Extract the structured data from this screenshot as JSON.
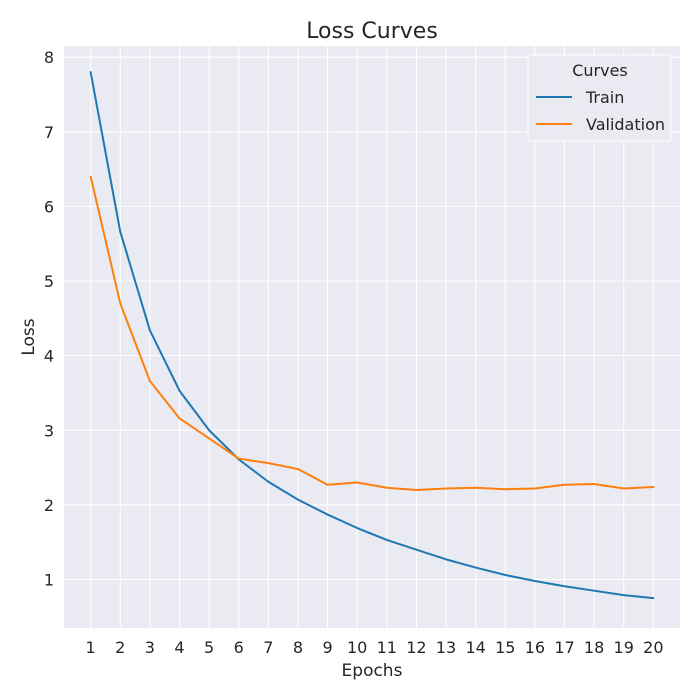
{
  "chart_data": {
    "type": "line",
    "title": "Loss Curves",
    "xlabel": "Epochs",
    "ylabel": "Loss",
    "x": [
      1,
      2,
      3,
      4,
      5,
      6,
      7,
      8,
      9,
      10,
      11,
      12,
      13,
      14,
      15,
      16,
      17,
      18,
      19,
      20
    ],
    "xlim": [
      0.1,
      20.9
    ],
    "ylim": [
      0.35,
      8.15
    ],
    "y_ticks": [
      1,
      2,
      3,
      4,
      5,
      6,
      7,
      8
    ],
    "grid": true,
    "legend": {
      "title": "Curves",
      "placement": "top-right"
    },
    "series": [
      {
        "name": "Train",
        "color": "#1f77b4",
        "values": [
          7.8,
          5.66,
          4.34,
          3.53,
          3.0,
          2.61,
          2.31,
          2.07,
          1.87,
          1.69,
          1.53,
          1.4,
          1.27,
          1.16,
          1.06,
          0.98,
          0.91,
          0.85,
          0.79,
          0.75
        ]
      },
      {
        "name": "Validation",
        "color": "#ff7f0e",
        "values": [
          6.4,
          4.7,
          3.66,
          3.16,
          2.89,
          2.62,
          2.56,
          2.48,
          2.27,
          2.3,
          2.23,
          2.2,
          2.22,
          2.23,
          2.21,
          2.22,
          2.27,
          2.28,
          2.22,
          2.24
        ]
      }
    ]
  },
  "colors": {
    "plot_background": "#eaeaf2",
    "grid": "#ffffff",
    "text": "#262626"
  }
}
